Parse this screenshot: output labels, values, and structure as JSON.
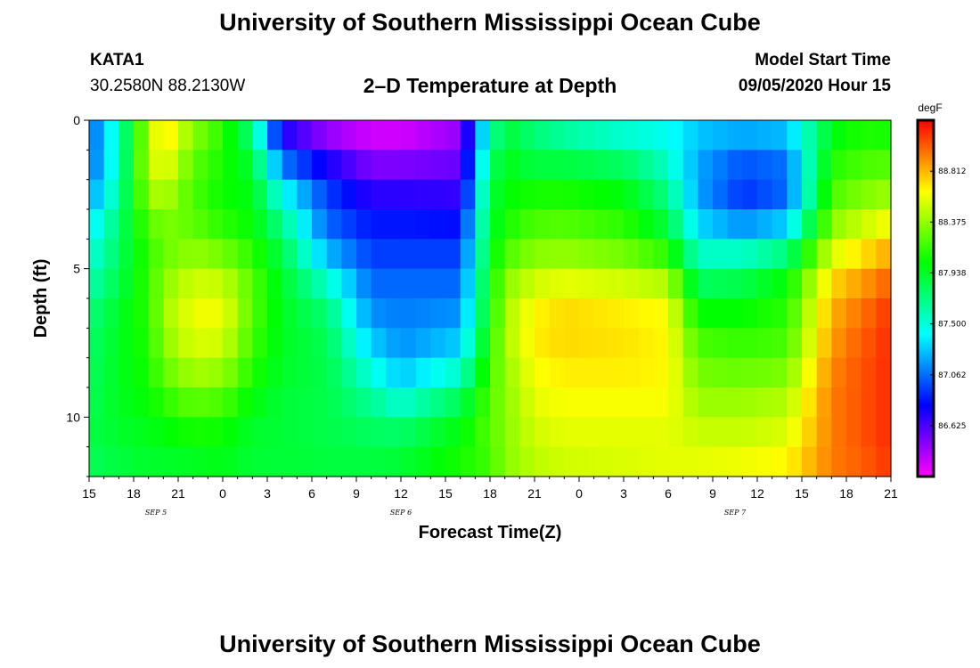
{
  "header": {
    "title": "University of Southern Mississippi Ocean Cube",
    "station": "KATA1",
    "coordinates": "30.2580N 88.2130W",
    "subtitle": "2–D Temperature at Depth",
    "model_start_label": "Model Start Time",
    "model_start_value": "09/05/2020 Hour 15"
  },
  "footer": {
    "title": "University of Southern Mississippi Ocean Cube"
  },
  "chart_data": {
    "type": "heatmap",
    "title": "2–D Temperature at Depth",
    "xlabel": "Forecast Time(Z)",
    "ylabel": "Depth (ft)",
    "x_hours_from_start": [
      0,
      54
    ],
    "x_tick_labels": [
      "15",
      "18",
      "21",
      "0",
      "3",
      "6",
      "9",
      "12",
      "15",
      "18",
      "21",
      "0",
      "3",
      "6",
      "9",
      "12",
      "15",
      "18",
      "21"
    ],
    "date_labels": [
      {
        "label": "SEP 5",
        "hour": 4.5
      },
      {
        "label": "SEP 6",
        "hour": 21
      },
      {
        "label": "SEP 7",
        "hour": 43.5
      }
    ],
    "y_ticks": [
      0,
      5,
      10
    ],
    "ylim": [
      0,
      12
    ],
    "depth_levels_ft": [
      0,
      1,
      2,
      3,
      4,
      5,
      6,
      7,
      8,
      9,
      10,
      11,
      12
    ],
    "colorbar": {
      "unit": "degF",
      "labels": [
        "88.812",
        "88.375",
        "87.938",
        "87.500",
        "87.062",
        "86.625"
      ],
      "range": [
        86.188,
        89.25
      ]
    },
    "profiles": [
      {
        "hour": 0,
        "temps": [
          87.0,
          87.0,
          87.05,
          87.25,
          87.45,
          87.5,
          87.7,
          87.75,
          87.8,
          87.8,
          87.85,
          87.85,
          87.8
        ]
      },
      {
        "hour": 2,
        "temps": [
          87.6,
          87.55,
          87.6,
          87.7,
          87.8,
          87.8,
          87.9,
          87.95,
          87.95,
          87.95,
          87.95,
          87.9,
          87.85
        ]
      },
      {
        "hour": 4,
        "temps": [
          88.4,
          88.5,
          88.45,
          88.3,
          88.15,
          88.15,
          88.15,
          88.1,
          88.1,
          88.05,
          88.0,
          87.95,
          87.9
        ]
      },
      {
        "hour": 5,
        "temps": [
          88.75,
          88.7,
          88.55,
          88.4,
          88.25,
          88.3,
          88.4,
          88.4,
          88.3,
          88.2,
          88.05,
          87.95,
          87.9
        ]
      },
      {
        "hour": 7,
        "temps": [
          88.4,
          88.3,
          88.2,
          88.2,
          88.3,
          88.45,
          88.6,
          88.6,
          88.5,
          88.35,
          88.15,
          88.0,
          87.9
        ]
      },
      {
        "hour": 9,
        "temps": [
          88.15,
          88.1,
          88.05,
          88.05,
          88.2,
          88.4,
          88.6,
          88.6,
          88.45,
          88.3,
          88.1,
          88.0,
          87.95
        ]
      },
      {
        "hour": 11,
        "temps": [
          87.6,
          87.85,
          87.95,
          88.0,
          88.05,
          88.2,
          88.25,
          88.2,
          88.15,
          88.05,
          87.95,
          87.9,
          87.9
        ]
      },
      {
        "hour": 13,
        "temps": [
          86.6,
          86.9,
          87.3,
          87.6,
          87.8,
          87.9,
          87.95,
          87.95,
          87.95,
          87.9,
          87.9,
          87.9,
          87.9
        ]
      },
      {
        "hour": 16,
        "temps": [
          86.3,
          86.6,
          86.9,
          87.0,
          87.1,
          87.4,
          87.7,
          87.8,
          87.85,
          87.85,
          87.85,
          87.85,
          87.9
        ]
      },
      {
        "hour": 19,
        "temps": [
          86.2,
          86.4,
          86.6,
          86.8,
          86.9,
          87.0,
          87.1,
          87.2,
          87.4,
          87.6,
          87.75,
          87.85,
          87.9
        ]
      },
      {
        "hour": 21,
        "temps": [
          86.2,
          86.4,
          86.6,
          86.8,
          86.9,
          87.0,
          87.1,
          87.1,
          87.2,
          87.35,
          87.7,
          87.85,
          87.95
        ]
      },
      {
        "hour": 25,
        "temps": [
          86.4,
          86.5,
          86.6,
          86.75,
          86.9,
          87.0,
          87.1,
          87.2,
          87.4,
          87.7,
          87.95,
          88.05,
          88.1
        ]
      },
      {
        "hour": 27,
        "temps": [
          87.5,
          87.7,
          87.8,
          87.9,
          87.9,
          88.0,
          88.0,
          88.05,
          88.15,
          88.2,
          88.25,
          88.2,
          88.15
        ]
      },
      {
        "hour": 28,
        "temps": [
          87.85,
          87.95,
          88.0,
          88.05,
          88.1,
          88.3,
          88.4,
          88.45,
          88.4,
          88.35,
          88.35,
          88.35,
          88.35
        ]
      },
      {
        "hour": 30,
        "temps": [
          87.75,
          87.75,
          88.0,
          88.15,
          88.25,
          88.45,
          88.6,
          88.7,
          88.65,
          88.6,
          88.55,
          88.5,
          88.45
        ]
      },
      {
        "hour": 32,
        "temps": [
          87.55,
          87.75,
          88.0,
          88.15,
          88.3,
          88.45,
          88.7,
          88.75,
          88.7,
          88.65,
          88.6,
          88.55,
          88.5
        ]
      },
      {
        "hour": 36,
        "temps": [
          87.4,
          87.65,
          87.95,
          88.05,
          88.2,
          88.4,
          88.65,
          88.7,
          88.7,
          88.65,
          88.6,
          88.55,
          88.55
        ]
      },
      {
        "hour": 39,
        "temps": [
          87.4,
          87.5,
          87.6,
          87.8,
          87.95,
          88.3,
          88.6,
          88.65,
          88.65,
          88.65,
          88.6,
          88.55,
          88.6
        ]
      },
      {
        "hour": 41,
        "temps": [
          87.3,
          87.25,
          87.15,
          87.25,
          87.4,
          87.7,
          87.9,
          88.15,
          88.25,
          88.35,
          88.45,
          88.55,
          88.6
        ]
      },
      {
        "hour": 44,
        "temps": [
          87.3,
          87.1,
          86.9,
          86.95,
          87.35,
          87.75,
          87.95,
          88.1,
          88.2,
          88.35,
          88.45,
          88.55,
          88.65
        ]
      },
      {
        "hour": 47,
        "temps": [
          87.35,
          87.15,
          87.0,
          87.1,
          87.5,
          87.95,
          88.1,
          88.15,
          88.25,
          88.4,
          88.5,
          88.6,
          88.7
        ]
      },
      {
        "hour": 50,
        "temps": [
          87.9,
          88.05,
          88.15,
          88.25,
          88.45,
          88.65,
          88.8,
          88.85,
          88.9,
          88.95,
          88.95,
          88.95,
          88.95
        ]
      },
      {
        "hour": 52,
        "temps": [
          88.05,
          88.15,
          88.25,
          88.4,
          88.6,
          88.8,
          88.95,
          89.0,
          89.05,
          89.05,
          89.05,
          89.05,
          89.0
        ]
      },
      {
        "hour": 54,
        "temps": [
          88.0,
          88.15,
          88.3,
          88.5,
          88.75,
          88.95,
          89.1,
          89.15,
          89.15,
          89.15,
          89.15,
          89.15,
          89.1
        ]
      }
    ]
  }
}
